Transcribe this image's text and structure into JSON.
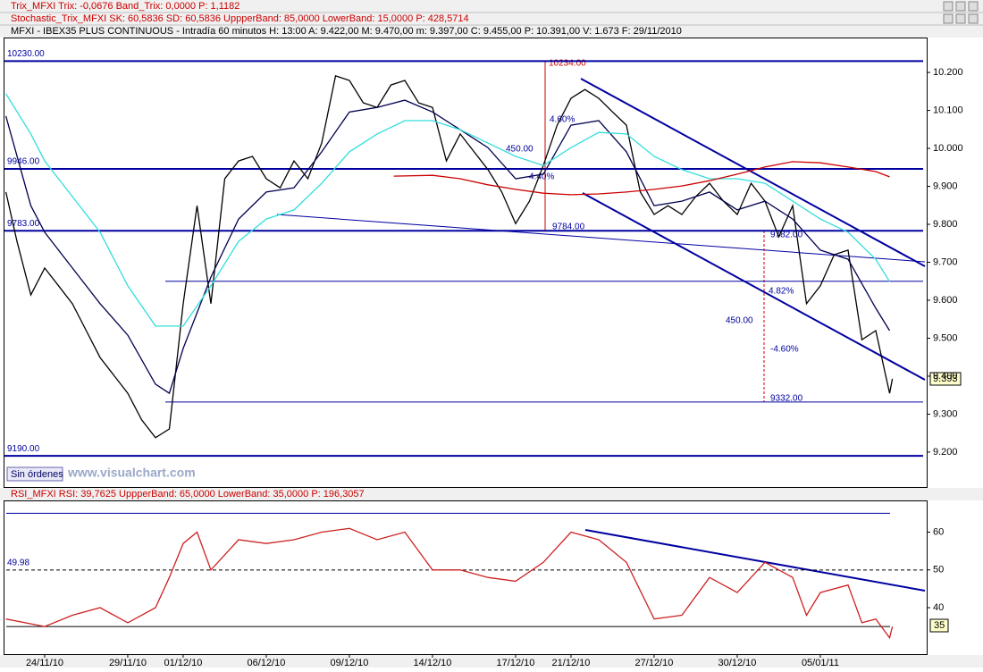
{
  "headers": [
    "Trix_MFXI  Trix: -0,0676  Band_Trix: 0,0000  P: 1,1182",
    "Stochastic_Trix_MFXI  SK: 60,5836  SD: 60,5836  UppperBand: 85,0000  LowerBand: 15,0000  P: 428,5714",
    "MFXI - IBEX35 PLUS CONTINUOUS - Intradía 60 minutos  H: 13:00  A: 9.422,00  M: 9.470,00  m: 9.397,00  C: 9.455,00  P: 10.391,00  V: 1.673  F: 29/11/2010"
  ],
  "order_button": "Sin órdenes",
  "watermark": "www.visualchart.com",
  "chart_data": [
    {
      "type": "line",
      "xlim": [
        -1.45,
        31.84
      ],
      "ylim": [
        9108,
        10292
      ],
      "yticks": [
        {
          "value": 9200,
          "label": "9.200"
        },
        {
          "value": 9300,
          "label": "9.300"
        },
        {
          "value": 9400,
          "label": "9.400"
        },
        {
          "value": 9500,
          "label": "9.500"
        },
        {
          "value": 9600,
          "label": "9.600"
        },
        {
          "value": 9700,
          "label": "9.700"
        },
        {
          "value": 9800,
          "label": "9.800"
        },
        {
          "value": 9900,
          "label": "9.900"
        },
        {
          "value": 10000,
          "label": "10.000"
        },
        {
          "value": 10100,
          "label": "10.100"
        },
        {
          "value": 10200,
          "label": "10.200"
        }
      ],
      "levels": [
        {
          "value": 10230,
          "label": "10230.00"
        },
        {
          "value": 9946,
          "label": "9946.00"
        },
        {
          "value": 9783,
          "label": "9783.00"
        },
        {
          "value": 9190,
          "label": "9190.00"
        }
      ],
      "thin_levels": [
        9650,
        9332
      ],
      "level_color": "#0000a0",
      "annotations": [
        "10234.00",
        "4.60%",
        "450.00",
        "4.40%",
        "9784.00",
        "9782.00",
        "4.82%",
        "450.00",
        "-4.60%",
        "9332.00",
        "9.393"
      ],
      "series": [
        {
          "color": "#000000",
          "x": [
            -1.4,
            -1,
            -0.5,
            0,
            0.5,
            1,
            1.5,
            2,
            2.5,
            3,
            3.5,
            4,
            4.5,
            5,
            5.5,
            6,
            6.5,
            7,
            7.5,
            8,
            8.5,
            9,
            9.5,
            10,
            10.5,
            11,
            11.5,
            12,
            12.5,
            13,
            13.5,
            14,
            14.5,
            15,
            15.5,
            16,
            16.5,
            17,
            17.5,
            18,
            18.5,
            19,
            19.5,
            20,
            20.5,
            21,
            21.5,
            22,
            22.5,
            23,
            23.5,
            24,
            24.5,
            25,
            25.5,
            26,
            26.5,
            27,
            27.5,
            28,
            28.5,
            29,
            29.5,
            30,
            30.5,
            30.6
          ],
          "values": [
            9885,
            9755,
            9614,
            9685,
            9638,
            9591,
            9520,
            9449,
            9402,
            9355,
            9285,
            9238,
            9261,
            9591,
            9849,
            9591,
            9920,
            9967,
            9979,
            9920,
            9896,
            9967,
            9920,
            10014,
            10191,
            10179,
            10120,
            10108,
            10167,
            10179,
            10120,
            10108,
            9967,
            10038,
            9991,
            9944,
            9885,
            9802,
            9861,
            9955,
            10061,
            10132,
            10155,
            10132,
            10096,
            10061,
            9885,
            9826,
            9849,
            9826,
            9873,
            9908,
            9861,
            9826,
            9908,
            9861,
            9767,
            9849,
            9591,
            9638,
            9720,
            9732,
            9496,
            9520,
            9355,
            9393
          ]
        },
        {
          "color": "#000050",
          "x": [
            -1.4,
            -0.5,
            0,
            1,
            2,
            3,
            4,
            4.5,
            5,
            6,
            7,
            8,
            9,
            10,
            11,
            12,
            13,
            14,
            15,
            16,
            17,
            18,
            19,
            20,
            21,
            22,
            23,
            24,
            25,
            26,
            27,
            28,
            29,
            30,
            30.5
          ],
          "values": [
            10085,
            9849,
            9779,
            9685,
            9591,
            9508,
            9379,
            9355,
            9473,
            9661,
            9814,
            9885,
            9896,
            9991,
            10096,
            10108,
            10127,
            10096,
            10049,
            10002,
            9920,
            9932,
            10061,
            10073,
            9991,
            9849,
            9861,
            9885,
            9838,
            9861,
            9814,
            9732,
            9708,
            9579,
            9520
          ]
        },
        {
          "color": "#33dddd",
          "x": [
            -1.4,
            -0.5,
            0,
            1,
            2,
            3,
            4,
            5,
            6,
            7,
            8,
            9,
            10,
            11,
            12,
            13,
            14,
            15,
            16,
            17,
            18,
            19,
            20,
            21,
            22,
            23,
            24,
            25,
            26,
            27,
            28,
            29,
            30,
            30.5
          ],
          "values": [
            10144,
            10038,
            9967,
            9873,
            9779,
            9638,
            9532,
            9532,
            9638,
            9755,
            9814,
            9838,
            9908,
            9991,
            10038,
            10073,
            10073,
            10049,
            10014,
            9979,
            9955,
            10002,
            10042,
            10038,
            9979,
            9944,
            9920,
            9920,
            9908,
            9861,
            9814,
            9779,
            9708,
            9649
          ]
        },
        {
          "color": "#cc0000",
          "x": [
            12.6,
            14,
            15,
            16,
            17,
            18,
            19,
            20,
            21,
            22,
            23,
            24,
            25,
            26,
            27,
            28,
            29,
            30,
            30.5
          ],
          "values": [
            9927,
            9929,
            9920,
            9904,
            9892,
            9882,
            9878,
            9880,
            9885,
            9892,
            9901,
            9915,
            9932,
            9951,
            9965,
            9962,
            9951,
            9939,
            9925
          ]
        }
      ]
    },
    {
      "type": "line",
      "title": "RSI_MFXI  RSI: 39,7625  UppperBand: 65,0000  LowerBand: 35,0000  P: 196,3057",
      "xlim": [
        -1.45,
        31.84
      ],
      "ylim": [
        27.7,
        68.4
      ],
      "yticks": [
        40,
        50,
        60
      ],
      "xticks": [
        {
          "value": 0,
          "label": "24/11/10"
        },
        {
          "value": 3,
          "label": "29/11/10"
        },
        {
          "value": 5,
          "label": "01/12/10"
        },
        {
          "value": 8,
          "label": "06/12/10"
        },
        {
          "value": 11,
          "label": "09/12/10"
        },
        {
          "value": 14,
          "label": "14/12/10"
        },
        {
          "value": 17,
          "label": "17/12/10"
        },
        {
          "value": 19,
          "label": "21/12/10"
        },
        {
          "value": 22,
          "label": "27/12/10"
        },
        {
          "value": 25,
          "label": "30/12/10"
        },
        {
          "value": 28,
          "label": "05/01/11"
        }
      ],
      "bands": [
        65,
        35
      ],
      "reference": {
        "value": 49.98,
        "label": "49.98"
      },
      "annotations": [
        "35"
      ],
      "series": [
        {
          "color": "#cc2222",
          "x": [
            -1.4,
            0,
            1,
            2,
            3,
            4,
            4.5,
            5,
            5.5,
            6,
            7,
            8,
            9,
            10,
            11,
            12,
            13,
            14,
            15,
            16,
            17,
            18,
            19,
            20,
            21,
            22,
            23,
            24,
            25,
            26,
            27,
            27.5,
            28,
            29,
            29.5,
            30,
            30.5,
            30.6
          ],
          "values": [
            37,
            35,
            38,
            40,
            36,
            40,
            48,
            57,
            60,
            50,
            58,
            57,
            58,
            60,
            61,
            58,
            60,
            50,
            50,
            48,
            47,
            52,
            60,
            58,
            52,
            37,
            38,
            48,
            44,
            52,
            48,
            38,
            44,
            46,
            36,
            37,
            32,
            35
          ]
        }
      ]
    }
  ]
}
